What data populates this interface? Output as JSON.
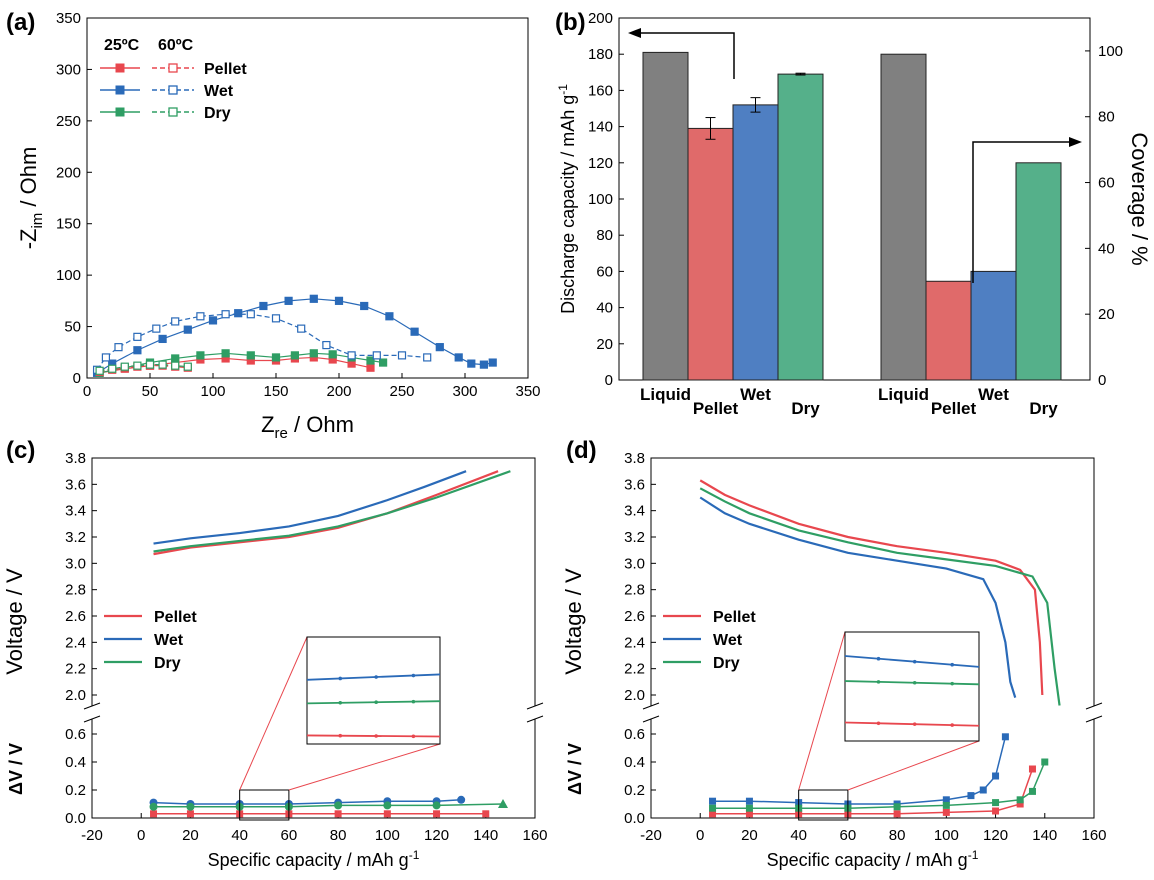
{
  "panels": {
    "a": {
      "label": "(a)"
    },
    "b": {
      "label": "(b)"
    },
    "c": {
      "label": "(c)"
    },
    "d": {
      "label": "(d)"
    }
  },
  "colors": {
    "pellet": "#e8474e",
    "wet": "#2a6ab8",
    "dry": "#2f9e64",
    "liquid": "#808080",
    "pellet_bar": "#e06a6a",
    "wet_bar": "#4f7fc2",
    "dry_bar": "#55b08a"
  },
  "chart_data": [
    {
      "id": "a",
      "type": "scatter",
      "xlabel_main": "Z",
      "xlabel_sub": "re",
      "xlabel_rest": " / Ohm",
      "ylabel_main": "-Z",
      "ylabel_sub": "im",
      "ylabel_rest": " / Ohm",
      "xlim": [
        0,
        350
      ],
      "ylim": [
        0,
        350
      ],
      "xticks": [
        "0",
        "50",
        "100",
        "150",
        "200",
        "250",
        "300",
        "350"
      ],
      "yticks": [
        "0",
        "50",
        "100",
        "150",
        "200",
        "250",
        "300",
        "350"
      ],
      "legend_headers": [
        "25ºC",
        "60ºC"
      ],
      "legend_entries": [
        "Pellet",
        "Wet",
        "Dry"
      ],
      "series": [
        {
          "name": "Pellet",
          "temp": "25ºC",
          "color": "#e8474e",
          "x": [
            10,
            30,
            50,
            70,
            90,
            110,
            130,
            150,
            165,
            180,
            195,
            210,
            225
          ],
          "y": [
            5,
            9,
            12,
            15,
            18,
            19,
            17,
            17,
            19,
            20,
            18,
            14,
            10
          ]
        },
        {
          "name": "Wet",
          "temp": "25ºC",
          "color": "#2a6ab8",
          "x": [
            8,
            20,
            40,
            60,
            80,
            100,
            120,
            140,
            160,
            180,
            200,
            220,
            240,
            260,
            280,
            295,
            305,
            315,
            322
          ],
          "y": [
            5,
            14,
            27,
            38,
            47,
            56,
            63,
            70,
            75,
            77,
            75,
            70,
            60,
            45,
            30,
            20,
            14,
            13,
            15
          ]
        },
        {
          "name": "Dry",
          "temp": "25ºC",
          "color": "#2f9e64",
          "x": [
            10,
            30,
            50,
            70,
            90,
            110,
            130,
            150,
            165,
            180,
            195,
            210,
            225,
            235
          ],
          "y": [
            5,
            10,
            15,
            19,
            22,
            24,
            22,
            20,
            22,
            24,
            23,
            20,
            17,
            15
          ]
        },
        {
          "name": "Pellet",
          "temp": "60ºC",
          "color": "#e8474e",
          "x": [
            10,
            20,
            30,
            40,
            50,
            60,
            70,
            80
          ],
          "y": [
            6,
            8,
            10,
            11,
            12,
            12,
            11,
            10
          ]
        },
        {
          "name": "Wet",
          "temp": "60ºC",
          "color": "#2a6ab8",
          "x": [
            8,
            15,
            25,
            40,
            55,
            70,
            90,
            110,
            130,
            150,
            170,
            190,
            210,
            230,
            250,
            270
          ],
          "y": [
            8,
            20,
            30,
            40,
            48,
            55,
            60,
            62,
            62,
            58,
            48,
            32,
            22,
            22,
            22,
            20
          ]
        },
        {
          "name": "Dry",
          "temp": "60ºC",
          "color": "#2f9e64",
          "x": [
            10,
            20,
            30,
            40,
            50,
            60,
            70,
            80
          ],
          "y": [
            7,
            9,
            11,
            12,
            13,
            13,
            12,
            11
          ]
        }
      ]
    },
    {
      "id": "b",
      "type": "bar",
      "ylabel_left_main": "Discharge capacity / mAh g",
      "ylabel_left_sup": "-1",
      "ylabel_right": "Coverage / %",
      "ylim_left": [
        0,
        200
      ],
      "ylim_right": [
        0,
        110
      ],
      "yticks_left": [
        "0",
        "20",
        "40",
        "60",
        "80",
        "100",
        "120",
        "140",
        "160",
        "180",
        "200"
      ],
      "yticks_right": [
        "0",
        "20",
        "40",
        "60",
        "80",
        "100"
      ],
      "groups": [
        {
          "axis": "left",
          "categories": [
            "Liquid",
            "Pellet",
            "Wet",
            "Dry"
          ],
          "values": [
            181,
            139,
            152,
            169
          ],
          "errors": [
            0,
            6,
            4,
            0.5
          ]
        },
        {
          "axis": "right",
          "categories": [
            "Liquid",
            "Pellet",
            "Wet",
            "Dry"
          ],
          "values": [
            99,
            30,
            33,
            66
          ]
        }
      ]
    },
    {
      "id": "c",
      "type": "line",
      "xlabel_main": "Specific capacity / mAh g",
      "xlabel_sup": "-1",
      "ylabel_top": "Voltage / V",
      "ylabel_bottom": "ΔV / V",
      "xlim": [
        -20,
        160
      ],
      "xticks": [
        "-20",
        "0",
        "20",
        "40",
        "60",
        "80",
        "100",
        "120",
        "140",
        "160"
      ],
      "yticks_top": [
        "2.0",
        "2.2",
        "2.4",
        "2.6",
        "2.8",
        "3.0",
        "3.2",
        "3.4",
        "3.6",
        "3.8"
      ],
      "yticks_bottom": [
        "0.0",
        "0.2",
        "0.4",
        "0.6"
      ],
      "legend_entries": [
        "Pellet",
        "Wet",
        "Dry"
      ],
      "voltage": [
        {
          "name": "Pellet",
          "x": [
            5,
            20,
            40,
            60,
            80,
            100,
            120,
            145
          ],
          "y": [
            3.07,
            3.12,
            3.16,
            3.2,
            3.27,
            3.38,
            3.52,
            3.7
          ]
        },
        {
          "name": "Wet",
          "x": [
            5,
            20,
            40,
            60,
            80,
            100,
            115,
            132
          ],
          "y": [
            3.15,
            3.19,
            3.23,
            3.28,
            3.36,
            3.48,
            3.58,
            3.7
          ]
        },
        {
          "name": "Dry",
          "x": [
            5,
            20,
            40,
            60,
            80,
            100,
            120,
            150
          ],
          "y": [
            3.09,
            3.13,
            3.17,
            3.21,
            3.28,
            3.38,
            3.5,
            3.7
          ]
        }
      ],
      "dv": [
        {
          "name": "Pellet",
          "x": [
            5,
            20,
            40,
            60,
            80,
            100,
            120,
            140
          ],
          "y": [
            0.03,
            0.03,
            0.03,
            0.03,
            0.03,
            0.03,
            0.03,
            0.03
          ]
        },
        {
          "name": "Wet",
          "x": [
            5,
            20,
            40,
            60,
            80,
            100,
            120,
            130
          ],
          "y": [
            0.11,
            0.1,
            0.1,
            0.1,
            0.11,
            0.12,
            0.12,
            0.13
          ]
        },
        {
          "name": "Dry",
          "x": [
            5,
            20,
            40,
            60,
            80,
            100,
            120,
            147
          ],
          "y": [
            0.08,
            0.08,
            0.08,
            0.08,
            0.09,
            0.09,
            0.09,
            0.1
          ]
        }
      ]
    },
    {
      "id": "d",
      "type": "line",
      "xlabel_main": "Specific capacity / mAh g",
      "xlabel_sup": "-1",
      "ylabel_top": "Voltage / V",
      "ylabel_bottom": "ΔV / V",
      "xlim": [
        -20,
        160
      ],
      "xticks": [
        "-20",
        "0",
        "20",
        "40",
        "60",
        "80",
        "100",
        "120",
        "140",
        "160"
      ],
      "yticks_top": [
        "2.0",
        "2.2",
        "2.4",
        "2.6",
        "2.8",
        "3.0",
        "3.2",
        "3.4",
        "3.6",
        "3.8"
      ],
      "yticks_bottom": [
        "0.0",
        "0.2",
        "0.4",
        "0.6"
      ],
      "legend_entries": [
        "Pellet",
        "Wet",
        "Dry"
      ],
      "voltage": [
        {
          "name": "Pellet",
          "x": [
            0,
            10,
            20,
            40,
            60,
            80,
            100,
            120,
            130,
            136,
            138,
            139
          ],
          "y": [
            3.63,
            3.52,
            3.44,
            3.3,
            3.2,
            3.13,
            3.08,
            3.02,
            2.95,
            2.8,
            2.4,
            2.0
          ]
        },
        {
          "name": "Wet",
          "x": [
            0,
            10,
            20,
            40,
            60,
            80,
            100,
            115,
            120,
            124,
            126,
            128
          ],
          "y": [
            3.5,
            3.38,
            3.3,
            3.18,
            3.08,
            3.02,
            2.96,
            2.88,
            2.7,
            2.4,
            2.1,
            1.98
          ]
        },
        {
          "name": "Dry",
          "x": [
            0,
            10,
            20,
            40,
            60,
            80,
            100,
            120,
            135,
            141,
            144,
            146
          ],
          "y": [
            3.57,
            3.47,
            3.38,
            3.25,
            3.16,
            3.08,
            3.03,
            2.98,
            2.9,
            2.7,
            2.2,
            1.92
          ]
        }
      ],
      "dv": [
        {
          "name": "Pellet",
          "x": [
            5,
            20,
            40,
            60,
            80,
            100,
            120,
            130,
            135
          ],
          "y": [
            0.03,
            0.03,
            0.03,
            0.03,
            0.03,
            0.04,
            0.05,
            0.1,
            0.35
          ]
        },
        {
          "name": "Wet",
          "x": [
            5,
            20,
            40,
            60,
            80,
            100,
            110,
            115,
            120,
            124
          ],
          "y": [
            0.12,
            0.12,
            0.11,
            0.1,
            0.1,
            0.13,
            0.16,
            0.2,
            0.3,
            0.58
          ]
        },
        {
          "name": "Dry",
          "x": [
            5,
            20,
            40,
            60,
            80,
            100,
            120,
            130,
            135,
            140
          ],
          "y": [
            0.07,
            0.07,
            0.07,
            0.07,
            0.08,
            0.09,
            0.11,
            0.13,
            0.19,
            0.4
          ]
        }
      ]
    }
  ]
}
